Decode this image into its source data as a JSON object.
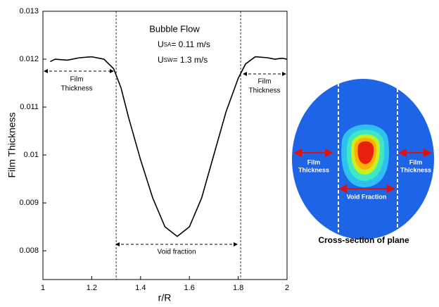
{
  "chart_data": {
    "type": "line",
    "x_label": "r/R",
    "y_label": "Film Thickness",
    "x": [
      1.03,
      1.05,
      1.1,
      1.15,
      1.2,
      1.25,
      1.29,
      1.32,
      1.35,
      1.4,
      1.45,
      1.5,
      1.55,
      1.6,
      1.65,
      1.7,
      1.75,
      1.8,
      1.83,
      1.87,
      1.92,
      1.95,
      1.98,
      2
    ],
    "series": [
      {
        "color": "#000000",
        "values": [
          0.01195,
          0.012,
          0.01198,
          0.01203,
          0.01205,
          0.012,
          0.0118,
          0.0114,
          0.0108,
          0.0099,
          0.0091,
          0.0085,
          0.0083,
          0.0085,
          0.0091,
          0.01,
          0.0109,
          0.0116,
          0.0119,
          0.01205,
          0.01203,
          0.012,
          0.01202,
          0.012
        ]
      }
    ],
    "xlim": [
      1,
      2
    ],
    "xticks": [
      1,
      1.2,
      1.4,
      1.6,
      1.8,
      2
    ],
    "ylim": [
      0.0074,
      0.013
    ],
    "yticks": [
      0.008,
      0.009,
      0.01,
      0.011,
      0.012,
      0.013
    ],
    "reference_lines_x": [
      1.3,
      1.81
    ],
    "annotations": {
      "flow": "Bubble Flow",
      "usa": {
        "symbol": "U",
        "sub": "SA",
        "text": "= 0.11 m/s"
      },
      "usw": {
        "symbol": "U",
        "sub": "SW",
        "text": "= 1.3 m/s"
      },
      "left_film": [
        "Film",
        "Thickness"
      ],
      "right_film": [
        "Film",
        "Thickness"
      ],
      "void": "Void fraction"
    }
  },
  "cross_section": {
    "left_label": [
      "Film",
      "Thickness"
    ],
    "right_label": [
      "Film",
      "Thickness"
    ],
    "void_label": "Void Fraction",
    "caption": "Cross-section of plane"
  }
}
